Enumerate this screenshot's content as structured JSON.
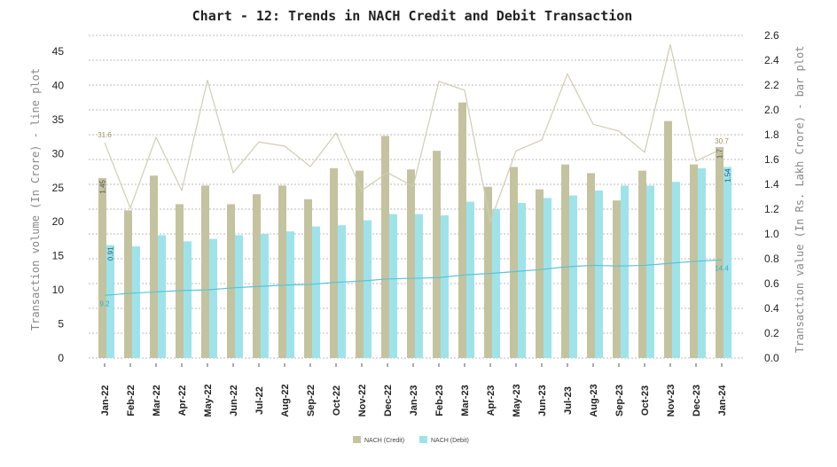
{
  "chart_data": {
    "type": "bar+line",
    "title": "Chart - 12: Trends in NACH Credit and Debit Transaction",
    "ylabel_left": "Transaction volume (In Crore) - line plot",
    "ylabel_right": "Transaction value (In Rs. Lakh Crore) - bar plot",
    "ylim_left": [
      0,
      45
    ],
    "yticks_left": [
      "0",
      "5",
      "10",
      "15",
      "20",
      "25",
      "30",
      "35",
      "40",
      "45"
    ],
    "ylim_right": [
      0,
      2.6
    ],
    "yticks_right": [
      "0.0",
      "0.2",
      "0.4",
      "0.6",
      "0.8",
      "1.0",
      "1.2",
      "1.4",
      "1.6",
      "1.8",
      "2.0",
      "2.2",
      "2.4",
      "2.6"
    ],
    "grid": true,
    "legend_position": "bottom",
    "categories": [
      "Jan-22",
      "Feb-22",
      "Mar-22",
      "Apr-22",
      "May-22",
      "Jun-22",
      "Jul-22",
      "Aug-22",
      "Sep-22",
      "Oct-22",
      "Nov-22",
      "Dec-22",
      "Jan-23",
      "Feb-23",
      "Mar-23",
      "Apr-23",
      "May-23",
      "Jun-23",
      "Jul-23",
      "Aug-23",
      "Sep-23",
      "Oct-23",
      "Nov-23",
      "Dec-23",
      "Jan-24"
    ],
    "bar_series": [
      {
        "name": "NACH (Credit)",
        "color": "#c4c3a0",
        "axis": "right",
        "values": [
          1.45,
          1.19,
          1.47,
          1.24,
          1.39,
          1.24,
          1.32,
          1.39,
          1.28,
          1.53,
          1.51,
          1.79,
          1.52,
          1.67,
          2.06,
          1.38,
          1.54,
          1.36,
          1.56,
          1.49,
          1.27,
          1.51,
          1.91,
          1.56,
          1.7
        ],
        "labels": {
          "0": "1.45",
          "24": "1.7"
        }
      },
      {
        "name": "NACH (Debit)",
        "color": "#9fe3ea",
        "axis": "right",
        "values": [
          0.91,
          0.9,
          0.99,
          0.94,
          0.96,
          0.99,
          1.0,
          1.02,
          1.06,
          1.07,
          1.11,
          1.16,
          1.16,
          1.15,
          1.26,
          1.2,
          1.25,
          1.29,
          1.31,
          1.35,
          1.39,
          1.39,
          1.42,
          1.53,
          1.54
        ],
        "labels": {
          "0": "0.91",
          "24": "1.54"
        }
      }
    ],
    "line_series": [
      {
        "color": "#cfcdb4",
        "axis": "left",
        "values": [
          31.6,
          22.0,
          32.4,
          24.6,
          40.8,
          27.2,
          31.7,
          31.1,
          28.1,
          33.0,
          24.6,
          27.2,
          25.2,
          40.6,
          39.3,
          20.0,
          30.4,
          32.0,
          41.7,
          34.3,
          33.3,
          30.2,
          46.0,
          28.9,
          30.7
        ],
        "labels": {
          "0": "31.6",
          "24": "30.7"
        }
      },
      {
        "color": "#5bc3d3",
        "axis": "left",
        "values": [
          9.2,
          9.5,
          9.7,
          9.9,
          10.0,
          10.3,
          10.5,
          10.7,
          10.8,
          11.1,
          11.3,
          11.6,
          11.7,
          11.8,
          12.2,
          12.4,
          12.7,
          13.0,
          13.4,
          13.6,
          13.5,
          13.6,
          13.9,
          14.2,
          14.4
        ],
        "labels": {
          "0": "9.2",
          "24": "14.4"
        }
      }
    ]
  }
}
